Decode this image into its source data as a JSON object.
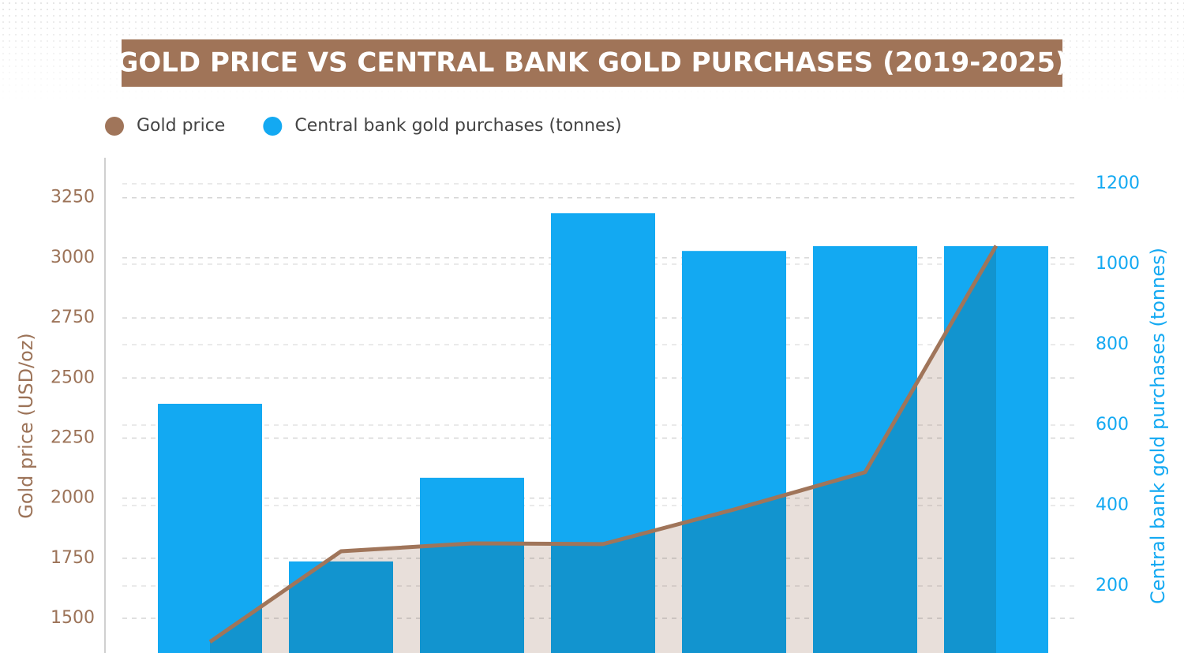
{
  "chart_data": {
    "type": "combo",
    "title": "GOLD PRICE VS CENTRAL BANK GOLD PURCHASES (2019-2025)",
    "categories": [
      null,
      null,
      null,
      null,
      null,
      null,
      null
    ],
    "series": [
      {
        "name": "Gold price",
        "type": "line",
        "axis": "y",
        "color": "#a0755a",
        "area_color": "#e8dfda",
        "values": [
          1402,
          1779,
          1812,
          1809,
          1953,
          2108,
          3050
        ]
      },
      {
        "name": "Central bank gold purchases (tonnes)",
        "type": "bar",
        "axis": "y2",
        "color": "#13a9f2",
        "values": [
          653,
          261,
          469,
          1127,
          1033,
          1045,
          1045
        ]
      }
    ],
    "ylabel": "Gold price (USD/oz)",
    "y2label": "Central bank gold purchases (tonnes)",
    "ylim": [
      1300,
      3400
    ],
    "yticks": [
      1500,
      1750,
      2000,
      2250,
      2500,
      2750,
      3000,
      3250
    ],
    "y2lim": [
      0,
      1255
    ],
    "y2ticks": [
      200,
      400,
      600,
      800,
      1000,
      1200
    ],
    "grid": true
  }
}
